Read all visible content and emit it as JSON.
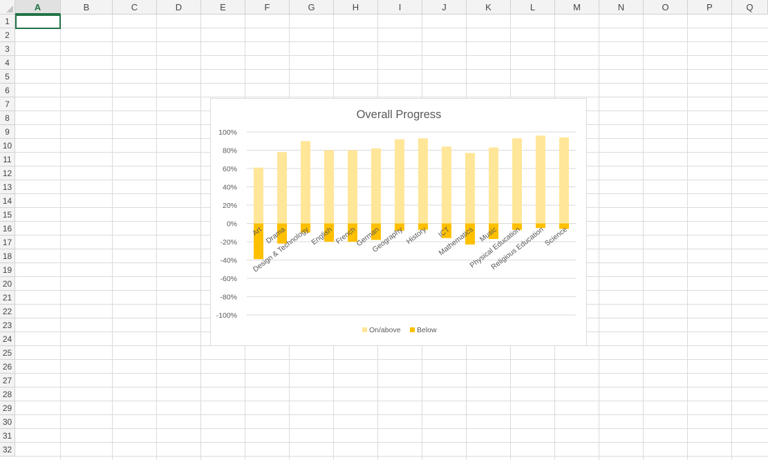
{
  "sheet": {
    "columns": [
      "A",
      "B",
      "C",
      "D",
      "E",
      "F",
      "G",
      "H",
      "I",
      "J",
      "K",
      "L",
      "M",
      "N",
      "O",
      "P",
      "Q"
    ],
    "rows": [
      "1",
      "2",
      "3",
      "4",
      "5",
      "6",
      "7",
      "8",
      "9",
      "10",
      "11",
      "12",
      "13",
      "14",
      "15",
      "16",
      "17",
      "18",
      "19",
      "20",
      "21",
      "22",
      "23",
      "24",
      "25",
      "26",
      "27",
      "28",
      "29",
      "30",
      "31",
      "32"
    ],
    "selected_column": "A",
    "selected_cell": "A1",
    "grid_color": "#dadada",
    "accent_color": "#217346"
  },
  "chart_data": {
    "type": "bar",
    "title": "Overall Progress",
    "categories": [
      "Art",
      "Drama",
      "Design & Technology",
      "English",
      "French",
      "German",
      "Geography",
      "History",
      "ICT",
      "Mathematics",
      "Music",
      "Physical Education",
      "Religious Education",
      "Science"
    ],
    "series": [
      {
        "name": "On/above",
        "color": "#ffe699",
        "values": [
          61,
          78,
          90,
          80,
          80,
          82,
          92,
          93,
          84,
          77,
          83,
          93,
          96,
          94
        ]
      },
      {
        "name": "Below",
        "color": "#ffc000",
        "values": [
          -39,
          -22,
          -10,
          -20,
          -20,
          -18,
          -8,
          -7,
          -16,
          -23,
          -17,
          -7,
          -5,
          -6
        ]
      }
    ],
    "stacked": true,
    "yticks": [
      "100%",
      "80%",
      "60%",
      "40%",
      "20%",
      "0%",
      "-20%",
      "-40%",
      "-60%",
      "-80%",
      "-100%"
    ],
    "ylim": [
      -100,
      100
    ],
    "xlabel": "",
    "ylabel": "",
    "grid": true,
    "legend": "bottom"
  }
}
